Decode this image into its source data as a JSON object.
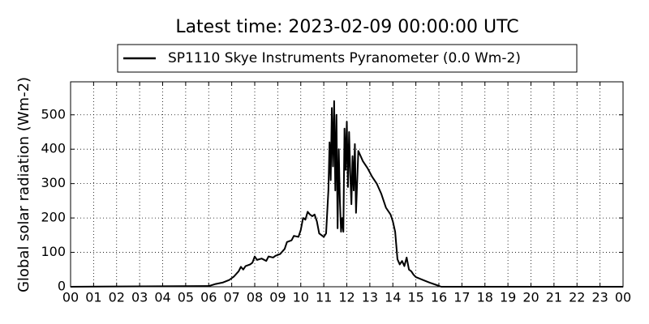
{
  "chart_data": {
    "type": "line",
    "title": "Latest time: 2023-02-09 00:00:00 UTC",
    "ylabel": "Global solar radiation (Wm-2)",
    "grid": true,
    "legend_position": "top",
    "xlim": [
      0,
      24
    ],
    "ylim": [
      0,
      596
    ],
    "xticks": [
      {
        "value": 0,
        "label": "00"
      },
      {
        "value": 1,
        "label": "01"
      },
      {
        "value": 2,
        "label": "02"
      },
      {
        "value": 3,
        "label": "03"
      },
      {
        "value": 4,
        "label": "04"
      },
      {
        "value": 5,
        "label": "05"
      },
      {
        "value": 6,
        "label": "06"
      },
      {
        "value": 7,
        "label": "07"
      },
      {
        "value": 8,
        "label": "08"
      },
      {
        "value": 9,
        "label": "09"
      },
      {
        "value": 10,
        "label": "10"
      },
      {
        "value": 11,
        "label": "11"
      },
      {
        "value": 12,
        "label": "12"
      },
      {
        "value": 13,
        "label": "13"
      },
      {
        "value": 14,
        "label": "14"
      },
      {
        "value": 15,
        "label": "15"
      },
      {
        "value": 16,
        "label": "16"
      },
      {
        "value": 17,
        "label": "17"
      },
      {
        "value": 18,
        "label": "18"
      },
      {
        "value": 19,
        "label": "19"
      },
      {
        "value": 20,
        "label": "20"
      },
      {
        "value": 21,
        "label": "21"
      },
      {
        "value": 22,
        "label": "22"
      },
      {
        "value": 23,
        "label": "23"
      },
      {
        "value": 24,
        "label": "00"
      }
    ],
    "yticks": [
      0,
      100,
      200,
      300,
      400,
      500
    ],
    "x": [
      0,
      6.0,
      6.3,
      6.6,
      6.9,
      7.1,
      7.3,
      7.4,
      7.5,
      7.6,
      7.8,
      7.9,
      8.0,
      8.1,
      8.3,
      8.5,
      8.6,
      8.8,
      8.9,
      9.1,
      9.3,
      9.4,
      9.6,
      9.7,
      9.9,
      10.0,
      10.1,
      10.2,
      10.3,
      10.4,
      10.5,
      10.6,
      10.7,
      10.8,
      10.9,
      11.0,
      11.1,
      11.2,
      11.25,
      11.3,
      11.35,
      11.4,
      11.45,
      11.5,
      11.55,
      11.6,
      11.65,
      11.7,
      11.75,
      11.8,
      11.85,
      11.9,
      11.95,
      12.0,
      12.05,
      12.1,
      12.15,
      12.2,
      12.25,
      12.3,
      12.35,
      12.4,
      12.5,
      12.7,
      12.9,
      13.1,
      13.3,
      13.5,
      13.7,
      13.9,
      14.0,
      14.1,
      14.2,
      14.3,
      14.4,
      14.5,
      14.6,
      14.7,
      14.8,
      14.9,
      15.0,
      15.3,
      15.6,
      15.9,
      16.1,
      24
    ],
    "series": [
      {
        "name": "SP1110 Skye Instruments Pyranometer (0.0 Wm-2)",
        "color": "#000000",
        "values": [
          0,
          2,
          8,
          12,
          20,
          30,
          45,
          58,
          50,
          60,
          65,
          70,
          88,
          78,
          82,
          75,
          88,
          85,
          90,
          95,
          110,
          130,
          135,
          148,
          145,
          165,
          200,
          195,
          218,
          210,
          205,
          210,
          190,
          155,
          150,
          145,
          155,
          280,
          420,
          310,
          520,
          350,
          540,
          280,
          500,
          170,
          400,
          250,
          160,
          200,
          160,
          460,
          340,
          480,
          290,
          450,
          330,
          240,
          380,
          280,
          415,
          215,
          395,
          365,
          345,
          320,
          300,
          270,
          230,
          210,
          190,
          160,
          80,
          65,
          75,
          60,
          85,
          50,
          45,
          35,
          28,
          20,
          12,
          5,
          0,
          0
        ]
      }
    ]
  }
}
